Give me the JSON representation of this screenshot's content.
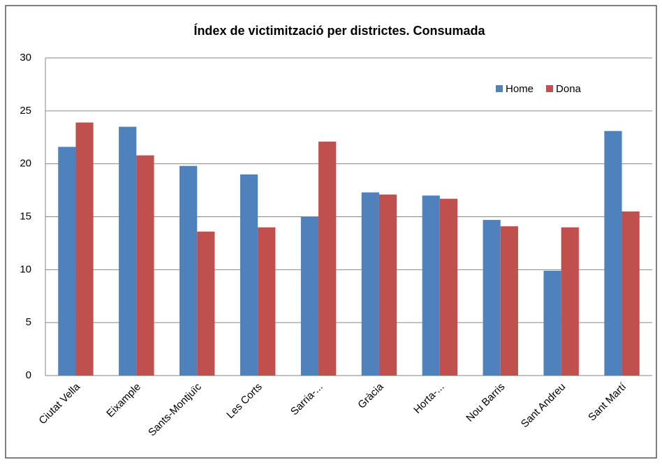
{
  "chart_data": {
    "type": "bar",
    "title": "Índex de victimització per districtes. Consumada",
    "categories": [
      "Ciutat Vella",
      "Eixample",
      "Sants-Montjuïc",
      "Les Corts",
      "Sarria-...",
      "Gràcia",
      "Horta-...",
      "Nou Barris",
      "Sant Andreu",
      "Sant Martí"
    ],
    "series": [
      {
        "name": "Home",
        "color": "#4f81bd",
        "values": [
          21.6,
          23.5,
          19.8,
          19.0,
          15.0,
          17.3,
          17.0,
          14.7,
          9.9,
          23.1
        ]
      },
      {
        "name": "Dona",
        "color": "#c0504d",
        "values": [
          23.9,
          20.8,
          13.6,
          14.0,
          22.1,
          17.1,
          16.7,
          14.1,
          14.0,
          15.5
        ]
      }
    ],
    "ylim": [
      0,
      30
    ],
    "yticks": [
      0,
      5,
      10,
      15,
      20,
      25,
      30
    ],
    "grid": true,
    "legend": "top-right"
  }
}
